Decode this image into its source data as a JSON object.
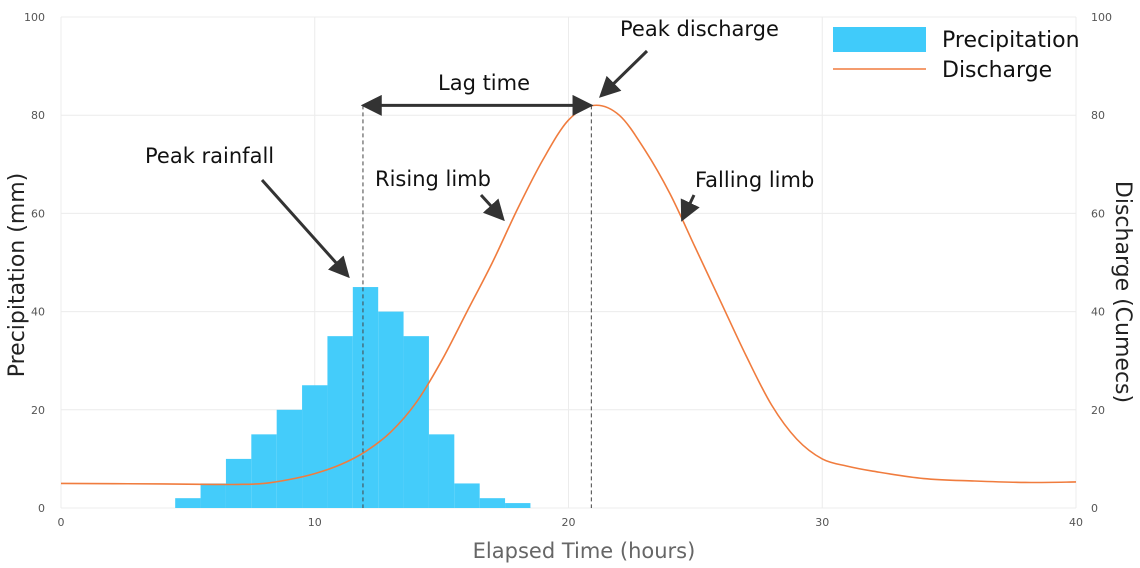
{
  "chart_data": {
    "type": "bar+line",
    "x_label": "Elapsed Time (hours)",
    "y_label_left": "Precipitation (mm)",
    "y_label_right": "Discharge (Cumecs)",
    "x_range": [
      0,
      40
    ],
    "y_range_left": [
      0,
      100
    ],
    "y_range_right": [
      0,
      100
    ],
    "x_ticks": [
      "0",
      "10",
      "20",
      "30",
      "40"
    ],
    "y_ticks_left": [
      "0",
      "20",
      "40",
      "60",
      "80",
      "100"
    ],
    "y_ticks_right": [
      "0",
      "20",
      "40",
      "60",
      "80",
      "100"
    ],
    "grid": true,
    "legend_position": "top-right",
    "colors": {
      "precipitation": "#40cbfa",
      "discharge": "#f07c3e"
    },
    "precipitation": {
      "name": "Precipitation",
      "bins": [
        {
          "start": 4.5,
          "end": 5.5,
          "value": 2
        },
        {
          "start": 5.5,
          "end": 6.5,
          "value": 5
        },
        {
          "start": 6.5,
          "end": 7.5,
          "value": 10
        },
        {
          "start": 7.5,
          "end": 8.5,
          "value": 15
        },
        {
          "start": 8.5,
          "end": 9.5,
          "value": 20
        },
        {
          "start": 9.5,
          "end": 10.5,
          "value": 25
        },
        {
          "start": 10.5,
          "end": 11.5,
          "value": 35
        },
        {
          "start": 11.5,
          "end": 12.5,
          "value": 45
        },
        {
          "start": 12.5,
          "end": 13.5,
          "value": 40
        },
        {
          "start": 13.5,
          "end": 14.5,
          "value": 35
        },
        {
          "start": 14.5,
          "end": 15.5,
          "value": 15
        },
        {
          "start": 15.5,
          "end": 16.5,
          "value": 5
        },
        {
          "start": 16.5,
          "end": 17.5,
          "value": 2
        },
        {
          "start": 17.5,
          "end": 18.5,
          "value": 1
        }
      ]
    },
    "discharge": {
      "name": "Discharge",
      "x": [
        0,
        4,
        6,
        7,
        8,
        9,
        10,
        11,
        12,
        13,
        14,
        15,
        16,
        17,
        18,
        19,
        20,
        21,
        22,
        23,
        24,
        25,
        26,
        27,
        28,
        29,
        30,
        31,
        32,
        34,
        36,
        38,
        40
      ],
      "y": [
        5,
        4.9,
        4.8,
        4.8,
        5,
        5.8,
        7,
        8.8,
        11.5,
        15.5,
        21.5,
        30,
        40,
        50,
        61,
        71,
        79,
        82,
        80,
        73,
        64,
        53,
        42,
        31,
        21,
        14,
        10,
        8.5,
        7.5,
        6,
        5.5,
        5.2,
        5.3
      ]
    },
    "annotations": {
      "peak_rainfall": "Peak rainfall",
      "rising_limb": "Rising limb",
      "lag_time": "Lag time",
      "peak_discharge": "Peak discharge",
      "falling_limb": "Falling limb"
    },
    "markers": {
      "peak_rainfall_x": 11.9,
      "peak_discharge_x": 20.9,
      "lag_y": 82
    }
  }
}
